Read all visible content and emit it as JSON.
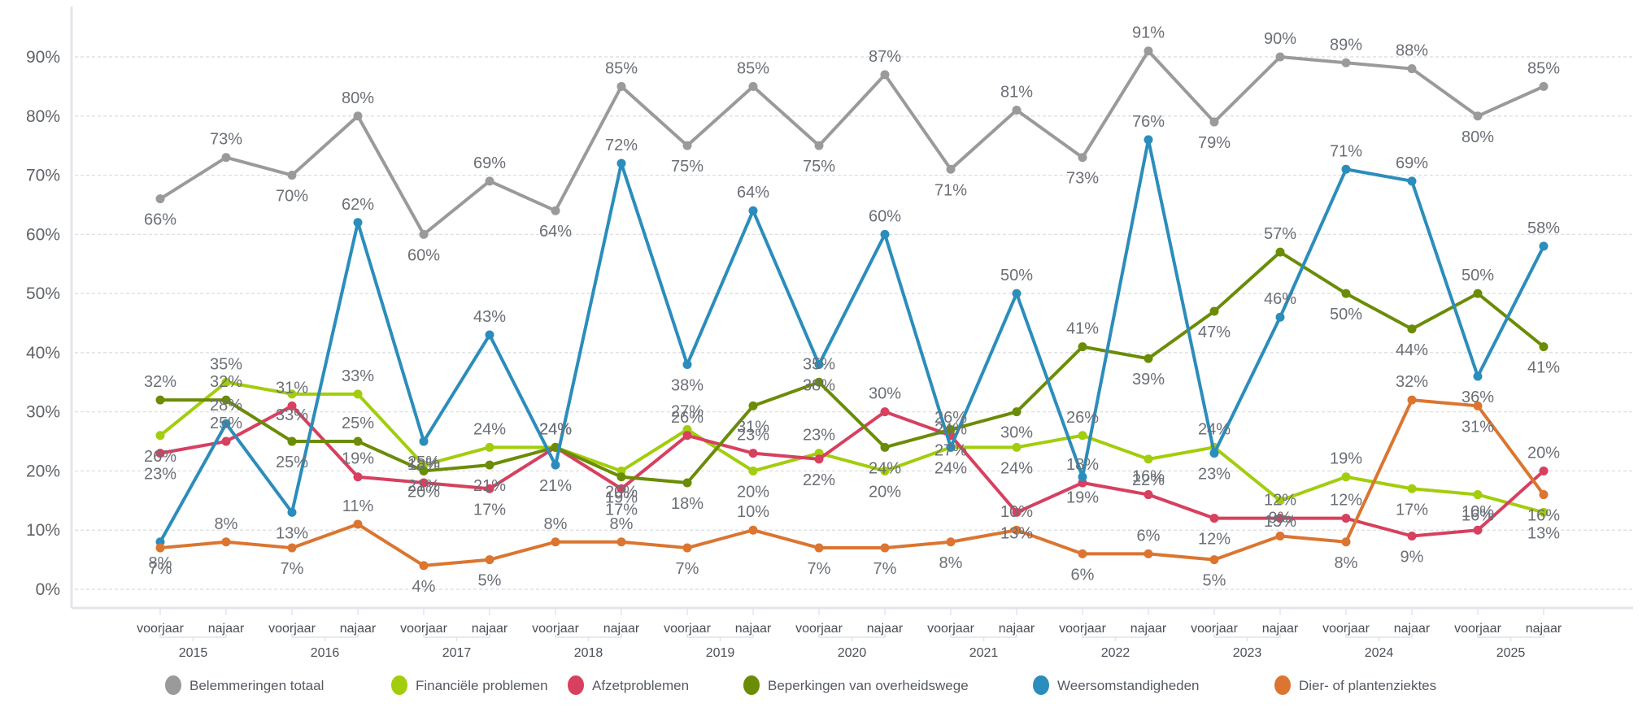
{
  "chart_data": {
    "type": "line",
    "title": "",
    "xlabel": "",
    "ylabel": "",
    "ylim": [
      0,
      90
    ],
    "y_ticks": [
      "0%",
      "10%",
      "20%",
      "30%",
      "40%",
      "50%",
      "60%",
      "70%",
      "80%",
      "90%"
    ],
    "y_tick_values": [
      0,
      10,
      20,
      30,
      40,
      50,
      60,
      70,
      80,
      90
    ],
    "grid": true,
    "legend_position": "bottom",
    "value_suffix": "%",
    "years": [
      "2015",
      "2016",
      "2017",
      "2018",
      "2019",
      "2020",
      "2021",
      "2022",
      "2023",
      "2024",
      "2025"
    ],
    "season_labels": [
      "voorjaar",
      "najaar"
    ],
    "x": [
      "voorjaar 2015",
      "najaar 2015",
      "voorjaar 2016",
      "najaar 2016",
      "voorjaar 2017",
      "najaar 2017",
      "voorjaar 2018",
      "najaar 2018",
      "voorjaar 2019",
      "najaar 2019",
      "voorjaar 2020",
      "najaar 2020",
      "voorjaar 2021",
      "najaar 2021",
      "voorjaar 2022",
      "najaar 2022",
      "voorjaar 2023",
      "najaar 2023",
      "voorjaar 2024",
      "najaar 2024",
      "voorjaar 2025",
      "najaar 2025"
    ],
    "series": [
      {
        "name": "Belemmeringen totaal",
        "color": "#9a9a9a",
        "values": [
          66,
          73,
          70,
          80,
          60,
          69,
          64,
          85,
          75,
          85,
          75,
          87,
          71,
          81,
          73,
          91,
          79,
          90,
          89,
          88,
          80,
          85
        ]
      },
      {
        "name": "Financiële problemen",
        "color": "#a2cd0c",
        "values": [
          26,
          35,
          33,
          33,
          21,
          24,
          24,
          20,
          27,
          20,
          23,
          20,
          24,
          24,
          26,
          22,
          24,
          15,
          19,
          17,
          16,
          13
        ]
      },
      {
        "name": "Afzetproblemen",
        "color": "#d7405f",
        "values": [
          23,
          25,
          31,
          19,
          18,
          17,
          24,
          17,
          26,
          23,
          22,
          30,
          26,
          13,
          18,
          16,
          12,
          12,
          12,
          9,
          10,
          20
        ]
      },
      {
        "name": "Beperkingen van overheidswege",
        "color": "#6b8c06",
        "values": [
          32,
          32,
          25,
          25,
          20,
          21,
          24,
          19,
          18,
          31,
          35,
          24,
          27,
          30,
          41,
          39,
          47,
          57,
          50,
          44,
          50,
          41
        ]
      },
      {
        "name": "Weersomstandigheden",
        "color": "#2b8dbb",
        "values": [
          8,
          28,
          13,
          62,
          25,
          43,
          21,
          72,
          38,
          64,
          38,
          60,
          24,
          50,
          19,
          76,
          23,
          46,
          71,
          69,
          36,
          58
        ]
      },
      {
        "name": "Dier- of plantenziektes",
        "color": "#db7530",
        "values": [
          7,
          8,
          7,
          11,
          4,
          5,
          8,
          8,
          7,
          10,
          7,
          7,
          8,
          10,
          6,
          6,
          5,
          9,
          8,
          32,
          31,
          16
        ]
      }
    ]
  }
}
